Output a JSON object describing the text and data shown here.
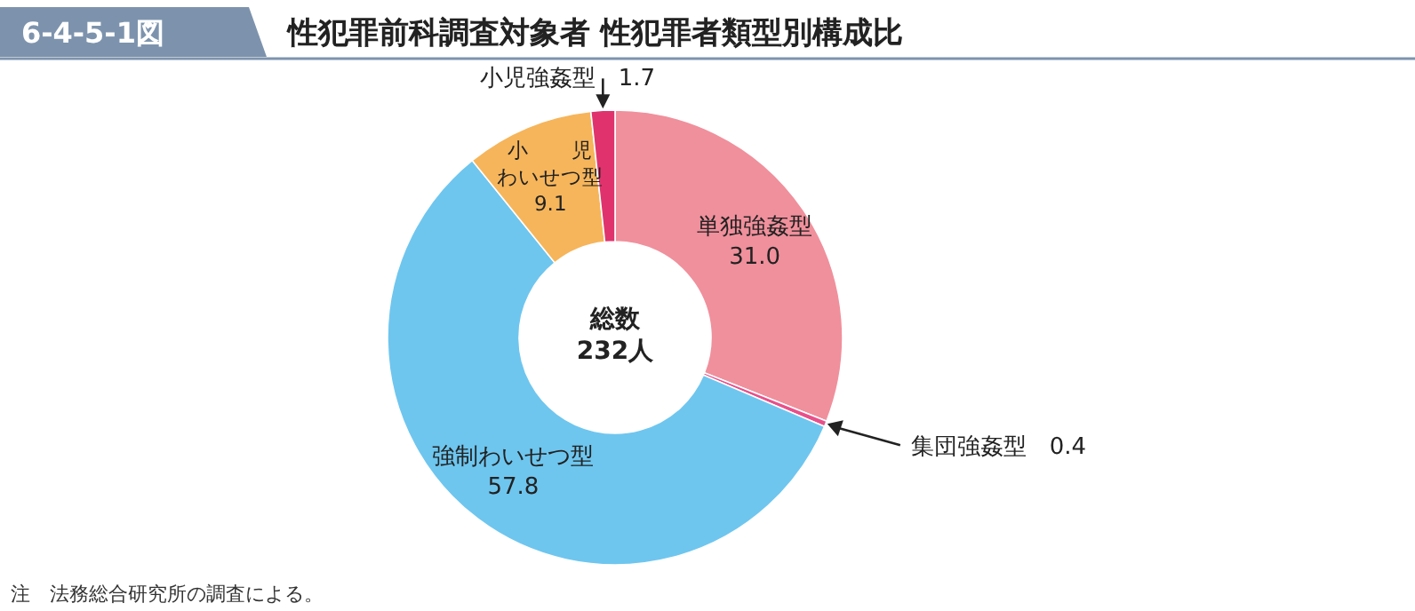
{
  "chart_data": {
    "type": "donut",
    "title": "性犯罪前科調査対象者 性犯罪者類型別構成比",
    "subtitle": "6-4-5-1図",
    "categories": [
      "単独強姦型",
      "集団強姦型",
      "強制わいせつ型",
      "小　　児わいせつ型",
      "小児強姦型"
    ],
    "values": [
      31.0,
      0.4,
      57.8,
      9.1,
      1.7
    ],
    "colors": [
      "#f0909c",
      "#e8508a",
      "#6ec6ef",
      "#f6b55a",
      "#e0336e"
    ],
    "value_labels": [
      "31.0",
      "0.4",
      "57.8",
      "9.1",
      "1.7"
    ],
    "annotations": [
      "総数\n232人",
      "注　法務総合研究所の調査による。"
    ]
  }
}
